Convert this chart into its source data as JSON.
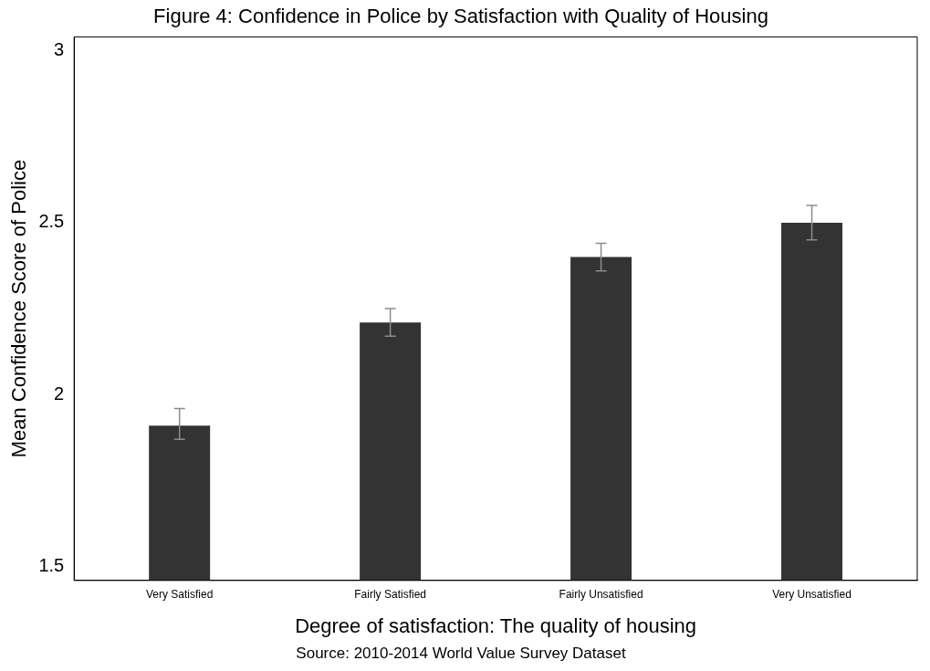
{
  "chart_data": {
    "type": "bar",
    "title": "Figure 4: Confidence in Police by Satisfaction with Quality of Housing",
    "xlabel": "Degree of satisfaction: The quality of housing",
    "ylabel": "Mean Confidence Score of Police",
    "annotations": [
      "Source: 2010-2014 World Value Survey Dataset"
    ],
    "categories": [
      "Very Satisfied",
      "Fairly Satisfied",
      "Fairly Unsatisfied",
      "Very Unsatisfied"
    ],
    "values": [
      1.91,
      2.21,
      2.4,
      2.5
    ],
    "color": "#333333",
    "errors": [
      [
        1.87,
        1.96
      ],
      [
        2.17,
        2.25
      ],
      [
        2.36,
        2.44
      ],
      [
        2.45,
        2.55
      ]
    ],
    "ylim": [
      1.46,
      3.04
    ],
    "yticks": [
      1.5,
      2,
      2.5,
      3
    ],
    "grid": false,
    "legend": false
  }
}
